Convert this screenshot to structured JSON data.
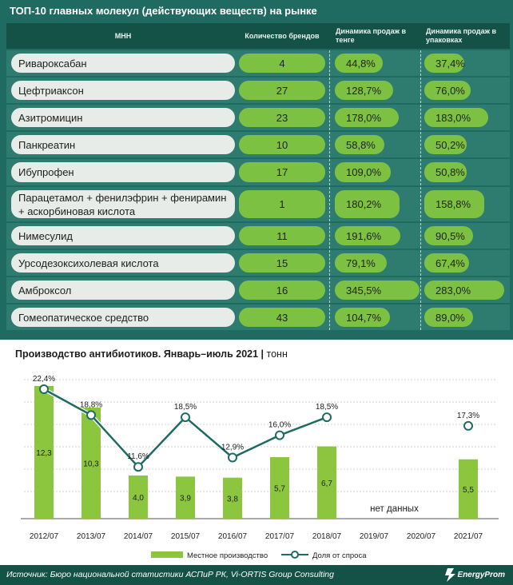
{
  "table": {
    "title": "ТОП-10 главных молекул (действующих веществ) на рынке",
    "columns": {
      "mnn": "МНН",
      "brands": "Количество брендов",
      "sales_tenge": "Динамика продаж в тенге",
      "sales_packs": "Динамика продаж в упаковках"
    },
    "rows": [
      {
        "name": "Ривароксабан",
        "brands": "4",
        "sales_tenge": "44,8%",
        "sales_tenge_value": 44.8,
        "sales_packs": "37,4%",
        "sales_packs_value": 37.4
      },
      {
        "name": "Цефтриаксон",
        "brands": "27",
        "sales_tenge": "128,7%",
        "sales_tenge_value": 128.7,
        "sales_packs": "76,0%",
        "sales_packs_value": 76.0
      },
      {
        "name": "Азитромицин",
        "brands": "23",
        "sales_tenge": "178,0%",
        "sales_tenge_value": 178.0,
        "sales_packs": "183,0%",
        "sales_packs_value": 183.0
      },
      {
        "name": "Панкреатин",
        "brands": "10",
        "sales_tenge": "58,8%",
        "sales_tenge_value": 58.8,
        "sales_packs": "50,2%",
        "sales_packs_value": 50.2
      },
      {
        "name": "Ибупрофен",
        "brands": "17",
        "sales_tenge": "109,0%",
        "sales_tenge_value": 109.0,
        "sales_packs": "50,8%",
        "sales_packs_value": 50.8
      },
      {
        "name": "Парацетамол + фенилэфрин + фенирамин + аскорбиновая кислота",
        "brands": "1",
        "sales_tenge": "180,2%",
        "sales_tenge_value": 180.2,
        "sales_packs": "158,8%",
        "sales_packs_value": 158.8
      },
      {
        "name": "Нимесулид",
        "brands": "11",
        "sales_tenge": "191,6%",
        "sales_tenge_value": 191.6,
        "sales_packs": "90,5%",
        "sales_packs_value": 90.5
      },
      {
        "name": "Урсодезоксихолевая кислота",
        "brands": "15",
        "sales_tenge": "79,1%",
        "sales_tenge_value": 79.1,
        "sales_packs": "67,4%",
        "sales_packs_value": 67.4
      },
      {
        "name": "Амброксол",
        "brands": "16",
        "sales_tenge": "345,5%",
        "sales_tenge_value": 345.5,
        "sales_packs": "283,0%",
        "sales_packs_value": 283.0
      },
      {
        "name": "Гомеопатическое средство",
        "brands": "43",
        "sales_tenge": "104,7%",
        "sales_tenge_value": 104.7,
        "sales_packs": "89,0%",
        "sales_packs_value": 89.0
      }
    ]
  },
  "chart_data": {
    "type": "bar",
    "title": "Производство антибиотиков. Январь–июль 2021",
    "unit": "тонн",
    "categories": [
      "2012/07",
      "2013/07",
      "2014/07",
      "2015/07",
      "2016/07",
      "2017/07",
      "2018/07",
      "2019/07",
      "2020/07",
      "2021/07"
    ],
    "series": [
      {
        "name": "Местное производство",
        "type": "bar",
        "values": [
          12.3,
          10.3,
          4.0,
          3.9,
          3.8,
          5.7,
          6.7,
          null,
          null,
          5.5
        ],
        "labels": [
          "12,3",
          "10,3",
          "4,0",
          "3,9",
          "3,8",
          "5,7",
          "6,7",
          "",
          "",
          "5,5"
        ]
      },
      {
        "name": "Доля от спроса",
        "type": "line",
        "values": [
          22.4,
          18.8,
          11.6,
          18.5,
          12.9,
          16.0,
          18.5,
          null,
          null,
          17.3
        ],
        "labels": [
          "22,4%",
          "18,8%",
          "11,6%",
          "18,5%",
          "12,9%",
          "16,0%",
          "18,5%",
          "",
          "",
          "17,3%"
        ]
      }
    ],
    "annotation": "нет данных",
    "legend_position": "bottom",
    "grid": "horizontal-dashed",
    "colors": {
      "bar": "#8cc63f",
      "line": "#1f6b61"
    }
  },
  "footer": {
    "source": "Источник: Бюро национальной статистики АСПиР РК, Vi-ORTIS Group Consulting",
    "brand": "EnergyProm"
  },
  "colors": {
    "background": "#1f6b61",
    "header": "#145248",
    "row": "#2e7b70",
    "pill": "#7cc142",
    "name_pill": "#e8ece8"
  }
}
